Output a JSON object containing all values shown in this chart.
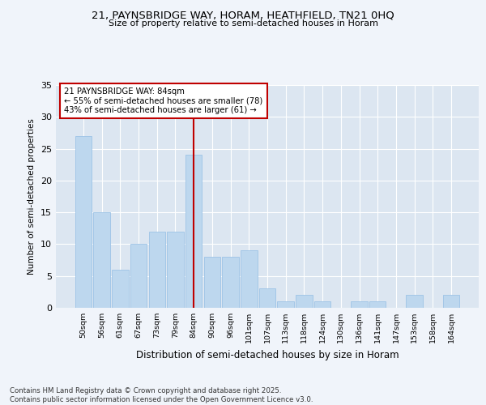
{
  "title1": "21, PAYNSBRIDGE WAY, HORAM, HEATHFIELD, TN21 0HQ",
  "title2": "Size of property relative to semi-detached houses in Horam",
  "xlabel": "Distribution of semi-detached houses by size in Horam",
  "ylabel": "Number of semi-detached properties",
  "categories": [
    "50sqm",
    "56sqm",
    "61sqm",
    "67sqm",
    "73sqm",
    "79sqm",
    "84sqm",
    "90sqm",
    "96sqm",
    "101sqm",
    "107sqm",
    "113sqm",
    "118sqm",
    "124sqm",
    "130sqm",
    "136sqm",
    "141sqm",
    "147sqm",
    "153sqm",
    "158sqm",
    "164sqm"
  ],
  "values": [
    27,
    15,
    6,
    10,
    12,
    12,
    24,
    8,
    8,
    9,
    3,
    1,
    2,
    1,
    0,
    1,
    1,
    0,
    2,
    0,
    2
  ],
  "highlight_index": 6,
  "bar_color": "#bdd7ee",
  "bar_edge_color": "#9dc3e6",
  "highlight_line_color": "#c00000",
  "annotation_text": "21 PAYNSBRIDGE WAY: 84sqm\n← 55% of semi-detached houses are smaller (78)\n43% of semi-detached houses are larger (61) →",
  "annotation_box_facecolor": "#ffffff",
  "annotation_box_edgecolor": "#c00000",
  "ylim": [
    0,
    35
  ],
  "yticks": [
    0,
    5,
    10,
    15,
    20,
    25,
    30,
    35
  ],
  "footer": "Contains HM Land Registry data © Crown copyright and database right 2025.\nContains public sector information licensed under the Open Government Licence v3.0.",
  "fig_facecolor": "#f0f4fa",
  "plot_facecolor": "#dce6f1"
}
